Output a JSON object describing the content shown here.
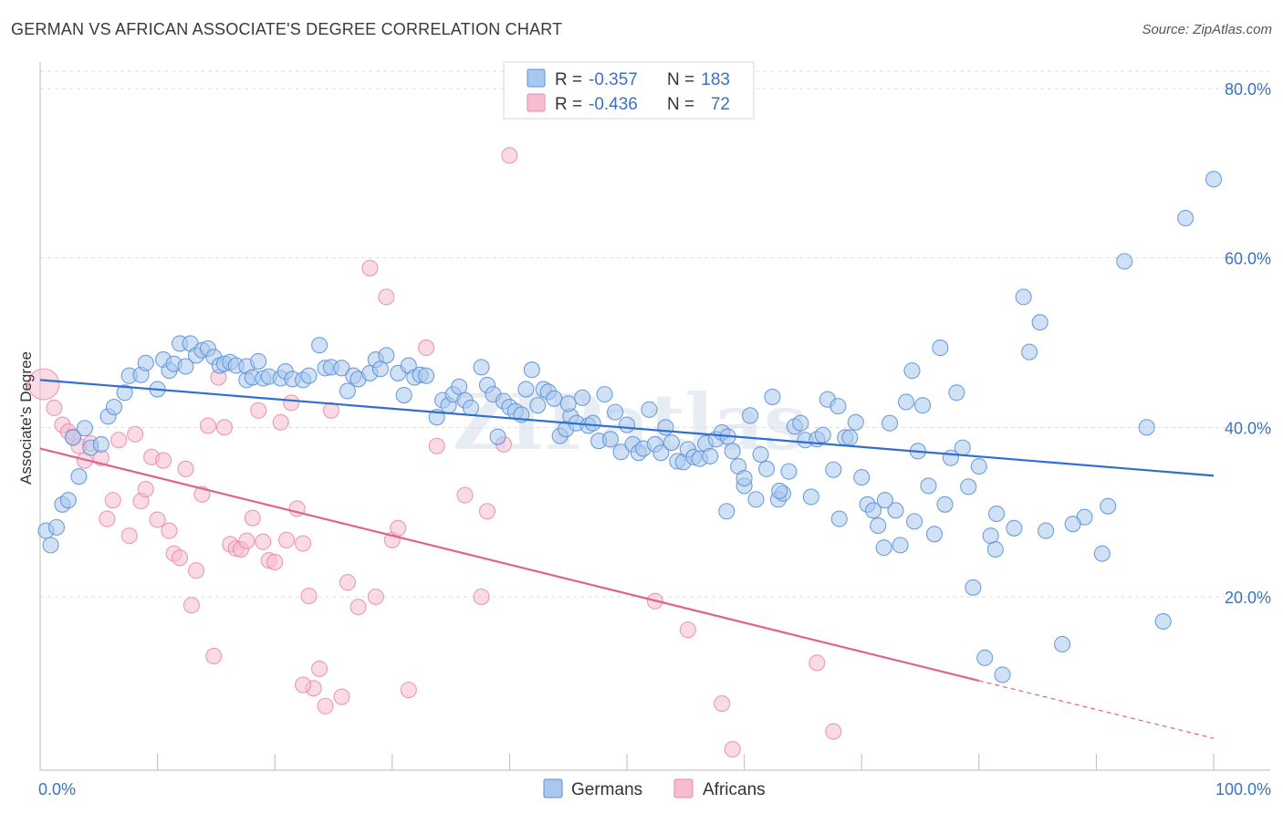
{
  "header": {
    "title": "GERMAN VS AFRICAN ASSOCIATE'S DEGREE CORRELATION CHART",
    "source": "Source: ZipAtlas.com"
  },
  "watermark": "ZIPatlas",
  "colors": {
    "german_fill": "#a9c8ee",
    "german_stroke": "#5b8fd6",
    "german_line": "#2e6fd1",
    "african_fill": "#f6bcd0",
    "african_stroke": "#e88aab",
    "african_line": "#e0628f",
    "tick_text": "#3b72c4",
    "grid": "#dddddd"
  },
  "legend": {
    "rows": [
      {
        "r_label": "R =",
        "r_value": "-0.357",
        "n_label": "N =",
        "n_value": "183"
      },
      {
        "r_label": "R =",
        "r_value": "-0.436",
        "n_label": "N =",
        "n_value": "72"
      }
    ]
  },
  "bottom_legend": [
    "Germans",
    "Africans"
  ],
  "chart_data": {
    "type": "scatter",
    "title": "GERMAN VS AFRICAN ASSOCIATE'S DEGREE CORRELATION CHART",
    "xlabel": "",
    "ylabel": "Associate's Degree",
    "xlim": [
      0,
      100
    ],
    "ylim": [
      0,
      82
    ],
    "x_tick_labels": [
      "0.0%",
      "100.0%"
    ],
    "y_ticks": [
      20,
      40,
      60,
      80
    ],
    "y_tick_labels": [
      "20.0%",
      "40.0%",
      "60.0%",
      "80.0%"
    ],
    "grid": true,
    "legend_position": "top-center",
    "series": [
      {
        "name": "Germans",
        "r": -0.357,
        "n": 183,
        "trend": {
          "x": [
            0,
            100
          ],
          "y": [
            45.6,
            34.3
          ]
        },
        "points": [
          [
            0.5,
            27.8
          ],
          [
            0.9,
            26.1
          ],
          [
            1.4,
            28.2
          ],
          [
            1.9,
            30.9
          ],
          [
            2.4,
            31.4
          ],
          [
            3.3,
            34.2
          ],
          [
            2.8,
            38.8
          ],
          [
            3.8,
            39.9
          ],
          [
            4.3,
            37.6
          ],
          [
            5.2,
            38.0
          ],
          [
            5.8,
            41.3
          ],
          [
            6.3,
            42.4
          ],
          [
            7.2,
            44.1
          ],
          [
            7.6,
            46.1
          ],
          [
            8.6,
            46.2
          ],
          [
            9.0,
            47.6
          ],
          [
            10.0,
            44.5
          ],
          [
            10.5,
            48.0
          ],
          [
            11.0,
            46.7
          ],
          [
            11.4,
            47.5
          ],
          [
            11.9,
            49.9
          ],
          [
            12.4,
            47.2
          ],
          [
            12.8,
            49.9
          ],
          [
            13.3,
            48.5
          ],
          [
            13.8,
            49.1
          ],
          [
            14.3,
            49.3
          ],
          [
            14.8,
            48.3
          ],
          [
            15.3,
            47.3
          ],
          [
            15.7,
            47.5
          ],
          [
            16.2,
            47.7
          ],
          [
            16.7,
            47.3
          ],
          [
            17.6,
            47.2
          ],
          [
            17.6,
            45.6
          ],
          [
            18.1,
            45.9
          ],
          [
            18.6,
            47.8
          ],
          [
            19.0,
            45.8
          ],
          [
            19.5,
            46.0
          ],
          [
            20.5,
            45.8
          ],
          [
            20.9,
            46.6
          ],
          [
            21.5,
            45.7
          ],
          [
            22.4,
            45.6
          ],
          [
            22.9,
            46.1
          ],
          [
            23.8,
            49.7
          ],
          [
            24.3,
            47.0
          ],
          [
            24.8,
            47.1
          ],
          [
            25.7,
            47.0
          ],
          [
            26.2,
            44.3
          ],
          [
            26.7,
            46.1
          ],
          [
            27.1,
            45.7
          ],
          [
            28.1,
            46.4
          ],
          [
            28.6,
            48.0
          ],
          [
            29.0,
            46.9
          ],
          [
            29.5,
            48.5
          ],
          [
            30.5,
            46.4
          ],
          [
            31.0,
            43.8
          ],
          [
            31.4,
            47.3
          ],
          [
            31.9,
            45.9
          ],
          [
            32.4,
            46.2
          ],
          [
            32.9,
            46.1
          ],
          [
            33.8,
            41.2
          ],
          [
            34.3,
            43.2
          ],
          [
            34.8,
            42.6
          ],
          [
            35.2,
            43.9
          ],
          [
            35.7,
            44.8
          ],
          [
            36.2,
            43.2
          ],
          [
            36.7,
            42.3
          ],
          [
            37.6,
            47.1
          ],
          [
            38.1,
            45.0
          ],
          [
            38.6,
            43.9
          ],
          [
            39.0,
            38.9
          ],
          [
            39.5,
            43.1
          ],
          [
            40.0,
            42.4
          ],
          [
            40.5,
            41.9
          ],
          [
            41.0,
            41.5
          ],
          [
            41.4,
            44.5
          ],
          [
            41.9,
            46.8
          ],
          [
            42.4,
            42.6
          ],
          [
            42.9,
            44.5
          ],
          [
            43.3,
            44.2
          ],
          [
            43.8,
            43.4
          ],
          [
            44.3,
            39.0
          ],
          [
            44.8,
            39.8
          ],
          [
            45.2,
            41.3
          ],
          [
            45.7,
            40.5
          ],
          [
            46.2,
            43.5
          ],
          [
            46.7,
            40.2
          ],
          [
            47.1,
            40.5
          ],
          [
            47.6,
            38.4
          ],
          [
            48.1,
            43.9
          ],
          [
            48.6,
            38.6
          ],
          [
            49.0,
            41.8
          ],
          [
            49.5,
            37.1
          ],
          [
            50.0,
            40.3
          ],
          [
            50.5,
            38.0
          ],
          [
            51.0,
            37.0
          ],
          [
            51.4,
            37.5
          ],
          [
            51.9,
            42.1
          ],
          [
            52.4,
            38.0
          ],
          [
            52.9,
            37.0
          ],
          [
            53.3,
            40.0
          ],
          [
            53.8,
            38.2
          ],
          [
            54.3,
            36.0
          ],
          [
            54.8,
            35.9
          ],
          [
            55.2,
            37.4
          ],
          [
            55.7,
            36.5
          ],
          [
            56.2,
            36.3
          ],
          [
            56.7,
            38.1
          ],
          [
            57.1,
            36.6
          ],
          [
            57.6,
            38.6
          ],
          [
            58.1,
            39.4
          ],
          [
            58.6,
            38.9
          ],
          [
            59.0,
            37.2
          ],
          [
            59.5,
            35.4
          ],
          [
            60.0,
            33.1
          ],
          [
            60.5,
            41.4
          ],
          [
            61.0,
            31.5
          ],
          [
            61.4,
            36.8
          ],
          [
            61.9,
            35.1
          ],
          [
            62.4,
            43.6
          ],
          [
            62.9,
            31.5
          ],
          [
            63.3,
            32.2
          ],
          [
            63.8,
            34.8
          ],
          [
            64.3,
            40.1
          ],
          [
            64.8,
            40.5
          ],
          [
            65.2,
            38.5
          ],
          [
            65.7,
            31.8
          ],
          [
            66.2,
            38.6
          ],
          [
            66.7,
            39.1
          ],
          [
            67.1,
            43.3
          ],
          [
            67.6,
            35.0
          ],
          [
            68.1,
            29.2
          ],
          [
            68.6,
            38.8
          ],
          [
            69.0,
            38.8
          ],
          [
            69.5,
            40.6
          ],
          [
            70.0,
            34.1
          ],
          [
            70.5,
            30.9
          ],
          [
            71.0,
            30.2
          ],
          [
            71.4,
            28.4
          ],
          [
            71.9,
            25.8
          ],
          [
            72.4,
            40.5
          ],
          [
            72.9,
            30.2
          ],
          [
            73.3,
            26.1
          ],
          [
            73.8,
            43.0
          ],
          [
            74.3,
            46.7
          ],
          [
            74.8,
            37.2
          ],
          [
            75.2,
            42.6
          ],
          [
            75.7,
            33.1
          ],
          [
            76.2,
            27.4
          ],
          [
            76.7,
            49.4
          ],
          [
            77.1,
            30.9
          ],
          [
            77.6,
            36.4
          ],
          [
            78.1,
            44.1
          ],
          [
            78.6,
            37.6
          ],
          [
            79.1,
            33.0
          ],
          [
            79.5,
            21.1
          ],
          [
            80.0,
            35.4
          ],
          [
            80.5,
            12.8
          ],
          [
            81.0,
            27.2
          ],
          [
            81.4,
            25.6
          ],
          [
            82.0,
            10.8
          ],
          [
            83.0,
            28.1
          ],
          [
            83.8,
            55.4
          ],
          [
            84.3,
            48.9
          ],
          [
            85.2,
            52.4
          ],
          [
            85.7,
            27.8
          ],
          [
            87.1,
            14.4
          ],
          [
            89.0,
            29.4
          ],
          [
            90.5,
            25.1
          ],
          [
            91.0,
            30.7
          ],
          [
            92.4,
            59.6
          ],
          [
            94.3,
            40.0
          ],
          [
            95.7,
            17.1
          ],
          [
            97.6,
            64.7
          ],
          [
            100.0,
            69.3
          ],
          [
            60.0,
            34.0
          ],
          [
            63.0,
            32.5
          ],
          [
            68.0,
            42.5
          ],
          [
            72.0,
            31.4
          ],
          [
            81.5,
            29.8
          ],
          [
            88.0,
            28.6
          ],
          [
            45.0,
            42.8
          ],
          [
            58.5,
            30.1
          ],
          [
            74.5,
            28.9
          ]
        ]
      },
      {
        "name": "Africans",
        "r": -0.436,
        "n": 72,
        "trend": {
          "x": [
            0,
            80
          ],
          "y": [
            37.5,
            10.1
          ]
        },
        "trend_extension": {
          "x": [
            80,
            100
          ],
          "y": [
            10.1,
            3.3
          ]
        },
        "points": [
          [
            0.3,
            45.1
          ],
          [
            1.2,
            42.3
          ],
          [
            1.9,
            40.3
          ],
          [
            2.4,
            39.5
          ],
          [
            2.8,
            38.9
          ],
          [
            3.3,
            37.8
          ],
          [
            3.8,
            36.1
          ],
          [
            4.3,
            38.1
          ],
          [
            5.2,
            36.4
          ],
          [
            5.7,
            29.2
          ],
          [
            6.2,
            31.4
          ],
          [
            6.7,
            38.5
          ],
          [
            7.6,
            27.2
          ],
          [
            8.1,
            39.2
          ],
          [
            8.6,
            31.3
          ],
          [
            9.0,
            32.7
          ],
          [
            9.5,
            36.5
          ],
          [
            10.0,
            29.1
          ],
          [
            10.5,
            36.1
          ],
          [
            11.0,
            27.8
          ],
          [
            11.4,
            25.1
          ],
          [
            11.9,
            24.6
          ],
          [
            12.4,
            35.1
          ],
          [
            12.9,
            19.0
          ],
          [
            13.3,
            23.1
          ],
          [
            13.8,
            32.1
          ],
          [
            14.3,
            40.2
          ],
          [
            14.8,
            13.0
          ],
          [
            15.2,
            45.9
          ],
          [
            15.7,
            40.0
          ],
          [
            16.2,
            26.2
          ],
          [
            16.7,
            25.7
          ],
          [
            17.1,
            25.6
          ],
          [
            17.6,
            26.6
          ],
          [
            18.1,
            29.3
          ],
          [
            18.6,
            42.0
          ],
          [
            19.0,
            26.5
          ],
          [
            19.5,
            24.3
          ],
          [
            20.0,
            24.1
          ],
          [
            20.5,
            40.6
          ],
          [
            21.0,
            26.7
          ],
          [
            21.4,
            42.9
          ],
          [
            21.9,
            30.4
          ],
          [
            22.4,
            26.3
          ],
          [
            22.9,
            20.1
          ],
          [
            23.3,
            9.2
          ],
          [
            23.8,
            11.5
          ],
          [
            24.3,
            7.1
          ],
          [
            24.8,
            42.0
          ],
          [
            25.7,
            8.2
          ],
          [
            26.2,
            21.7
          ],
          [
            27.1,
            18.8
          ],
          [
            28.1,
            58.8
          ],
          [
            28.6,
            20.0
          ],
          [
            29.5,
            55.4
          ],
          [
            30.0,
            26.7
          ],
          [
            30.5,
            28.1
          ],
          [
            31.4,
            9.0
          ],
          [
            32.9,
            49.4
          ],
          [
            33.8,
            37.8
          ],
          [
            36.2,
            32.0
          ],
          [
            37.6,
            20.0
          ],
          [
            38.1,
            30.1
          ],
          [
            39.5,
            38.0
          ],
          [
            40.0,
            72.1
          ],
          [
            52.4,
            19.5
          ],
          [
            55.2,
            16.1
          ],
          [
            58.1,
            7.4
          ],
          [
            59.0,
            2.0
          ],
          [
            66.2,
            12.2
          ],
          [
            67.6,
            4.1
          ],
          [
            22.4,
            9.6
          ]
        ]
      }
    ]
  }
}
